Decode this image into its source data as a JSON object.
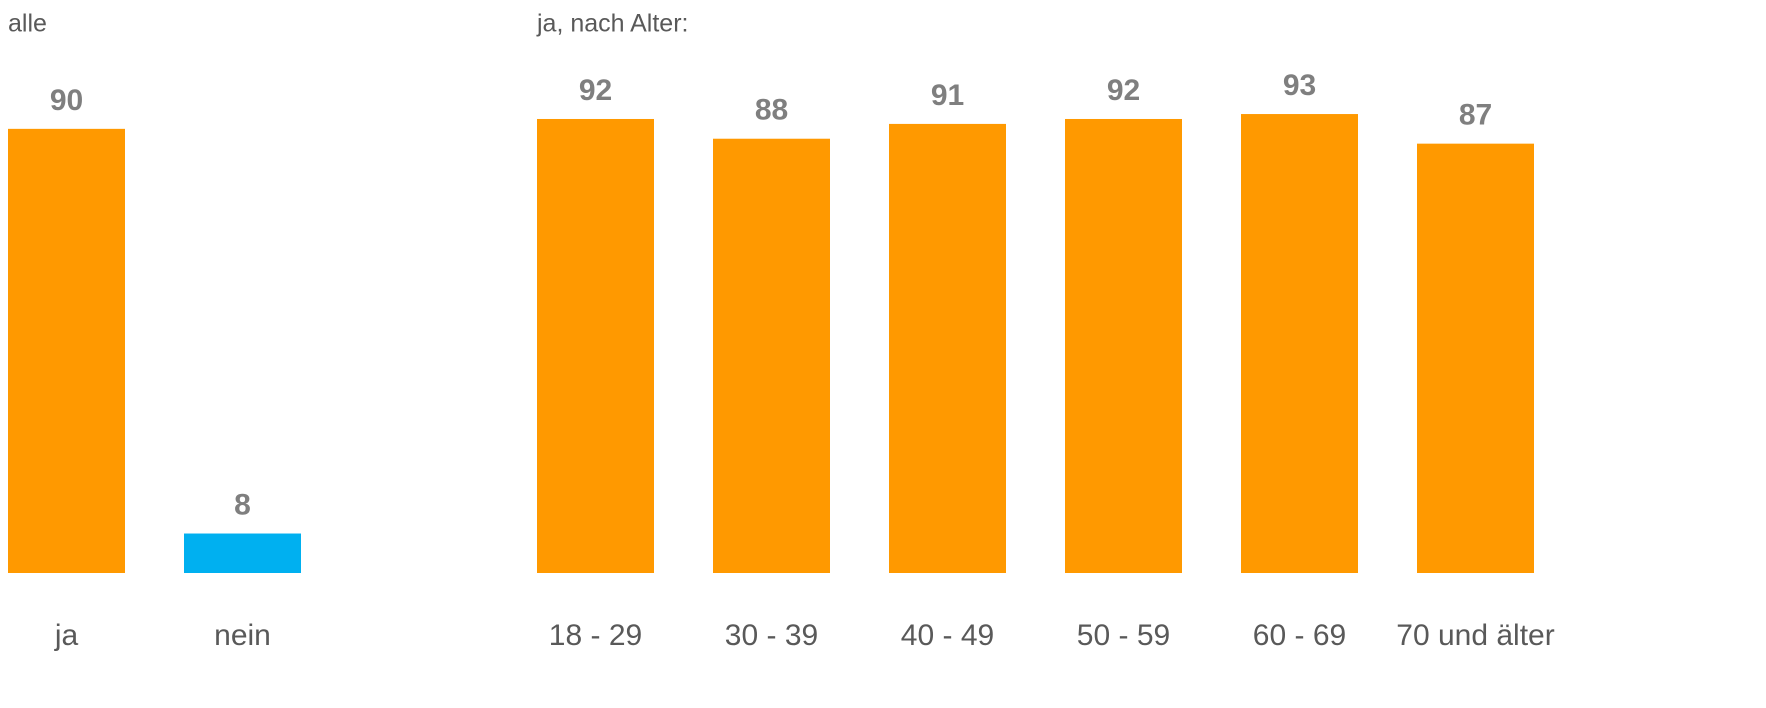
{
  "chart_data": [
    {
      "type": "bar",
      "title": "alle",
      "categories": [
        "ja",
        "nein"
      ],
      "values": [
        90,
        8
      ],
      "colors": [
        "#ff9900",
        "#00b0f0"
      ]
    },
    {
      "type": "bar",
      "title": "ja, nach Alter:",
      "categories": [
        "18 - 29",
        "30 - 39",
        "40 - 49",
        "50 - 59",
        "60 - 69",
        "70 und älter"
      ],
      "values": [
        92,
        88,
        91,
        92,
        93,
        87
      ],
      "color": "#ff9900"
    }
  ]
}
